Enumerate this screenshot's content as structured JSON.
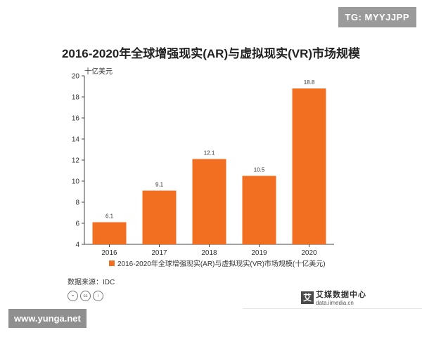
{
  "header": {
    "badge": "TG: MYYJJPP"
  },
  "chart_data": {
    "type": "bar",
    "title": "2016-2020年全球增强现实(AR)与虚拟现实(VR)市场规模",
    "unit_label": "十亿美元",
    "categories": [
      "2016",
      "2017",
      "2018",
      "2019",
      "2020"
    ],
    "series": [
      {
        "name": "2016-2020年全球增强现实(AR)与虚拟现实(VR)市场规模(十亿美元)",
        "values": [
          6.1,
          9.1,
          12.1,
          10.5,
          18.8
        ]
      }
    ],
    "data_labels": [
      "6.1",
      "9.1",
      "12.1",
      "10.5",
      "18.8"
    ],
    "ylim": [
      4,
      20
    ],
    "yticks": [
      "4",
      "6",
      "8",
      "10",
      "12",
      "14",
      "16",
      "18",
      "20"
    ],
    "grid": false,
    "legend_position": "bottom",
    "bar_color": "#f26f21"
  },
  "footer": {
    "source": "数据来源：IDC",
    "license_icons": [
      "=",
      "cc",
      "i"
    ],
    "brand_logo": "艾",
    "brand_name": "艾媒数据中心",
    "brand_url": "data.iimedia.cn",
    "watermark": "www.yunga.net"
  }
}
